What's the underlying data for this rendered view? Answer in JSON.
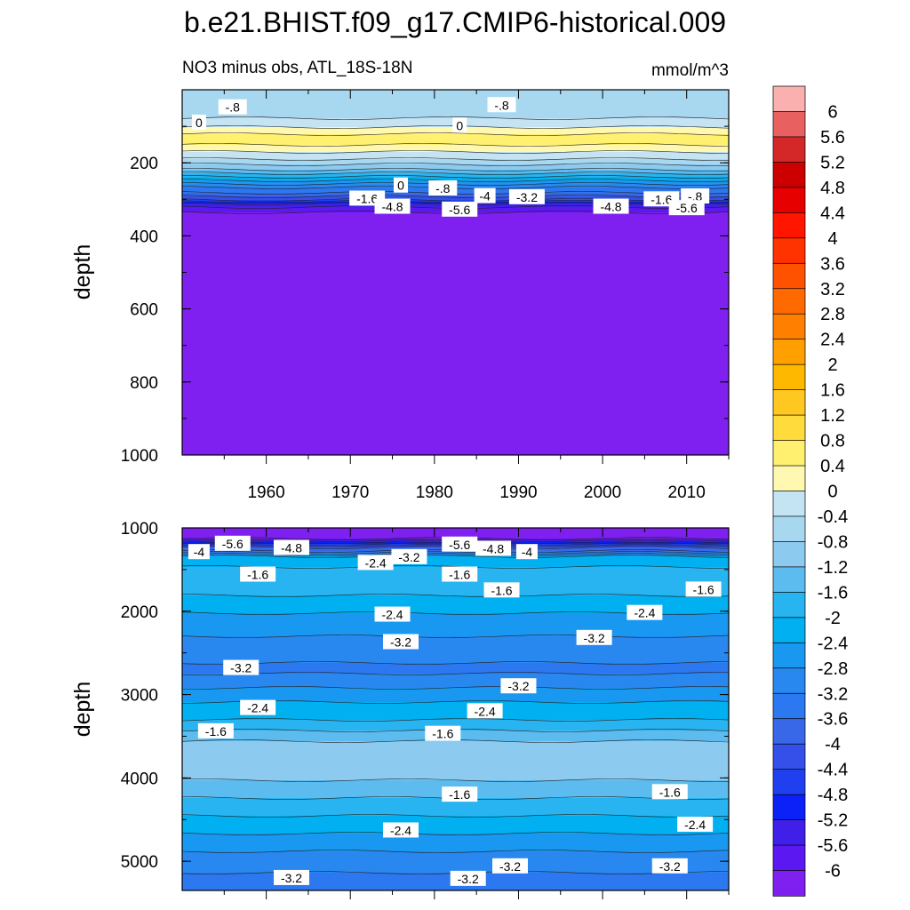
{
  "chart_data": {
    "type": "contour",
    "title": "b.e21.BHIST.f09_g17.CMIP6-historical.009",
    "subtitle_left": "NO3 minus obs, ATL_18S-18N",
    "units": "mmol/m^3",
    "ylabel": "depth",
    "x_range": [
      1950,
      2015
    ],
    "x_ticks": [
      "1960",
      "1970",
      "1980",
      "1990",
      "2000",
      "2010"
    ],
    "upper_panel": {
      "y_range": [
        0,
        1000
      ],
      "y_ticks": [
        "200",
        "400",
        "600",
        "800",
        "1000"
      ],
      "profile": [
        {
          "depth": 0,
          "value": -0.6
        },
        {
          "depth": 40,
          "value": -0.8
        },
        {
          "depth": 80,
          "value": -0.4
        },
        {
          "depth": 120,
          "value": 0.4
        },
        {
          "depth": 140,
          "value": 0.6
        },
        {
          "depth": 160,
          "value": 0.2
        },
        {
          "depth": 190,
          "value": -0.4
        },
        {
          "depth": 230,
          "value": -1.6
        },
        {
          "depth": 270,
          "value": -3.2
        },
        {
          "depth": 300,
          "value": -4.4
        },
        {
          "depth": 320,
          "value": -5.6
        },
        {
          "depth": 340,
          "value": -6.2
        },
        {
          "depth": 1000,
          "value": -6.2
        }
      ],
      "contour_labels": [
        {
          "text": "0",
          "year": 1952,
          "depth": 90
        },
        {
          "text": "-.8",
          "year": 1956,
          "depth": 48
        },
        {
          "text": "0",
          "year": 1983,
          "depth": 98
        },
        {
          "text": "-.8",
          "year": 1988,
          "depth": 42
        },
        {
          "text": "0",
          "year": 1976,
          "depth": 262
        },
        {
          "text": "-1.6",
          "year": 1972,
          "depth": 298
        },
        {
          "text": "-.8",
          "year": 1981,
          "depth": 270
        },
        {
          "text": "-1.6",
          "year": 2007,
          "depth": 300
        },
        {
          "text": "-.8",
          "year": 2011,
          "depth": 292
        },
        {
          "text": "-3.2",
          "year": 1991,
          "depth": 294
        },
        {
          "text": "-4",
          "year": 1986,
          "depth": 291
        },
        {
          "text": "-4.8",
          "year": 1975,
          "depth": 320
        },
        {
          "text": "-5.6",
          "year": 1983,
          "depth": 328
        },
        {
          "text": "-4.8",
          "year": 2001,
          "depth": 320
        },
        {
          "text": "-5.6",
          "year": 2010,
          "depth": 324
        }
      ]
    },
    "lower_panel": {
      "y_range": [
        1000,
        5350
      ],
      "y_ticks": [
        "1000",
        "2000",
        "3000",
        "4000",
        "5000"
      ],
      "profile": [
        {
          "depth": 1000,
          "value": -6.2
        },
        {
          "depth": 1130,
          "value": -6.0
        },
        {
          "depth": 1230,
          "value": -4.2
        },
        {
          "depth": 1350,
          "value": -2.4
        },
        {
          "depth": 1600,
          "value": -1.6
        },
        {
          "depth": 1900,
          "value": -2.2
        },
        {
          "depth": 2300,
          "value": -2.8
        },
        {
          "depth": 2700,
          "value": -3.3
        },
        {
          "depth": 3000,
          "value": -2.6
        },
        {
          "depth": 3300,
          "value": -2.0
        },
        {
          "depth": 3600,
          "value": -1.1
        },
        {
          "depth": 3900,
          "value": -1.0
        },
        {
          "depth": 4200,
          "value": -1.5
        },
        {
          "depth": 4600,
          "value": -2.3
        },
        {
          "depth": 5000,
          "value": -3.0
        },
        {
          "depth": 5350,
          "value": -3.5
        }
      ],
      "contour_labels": [
        {
          "text": "-4",
          "year": 1952,
          "depth": 1290
        },
        {
          "text": "-5.6",
          "year": 1956,
          "depth": 1190
        },
        {
          "text": "-4.8",
          "year": 1963,
          "depth": 1240
        },
        {
          "text": "-2.4",
          "year": 1973,
          "depth": 1420
        },
        {
          "text": "-3.2",
          "year": 1977,
          "depth": 1350
        },
        {
          "text": "-5.6",
          "year": 1983,
          "depth": 1200
        },
        {
          "text": "-4.8",
          "year": 1987,
          "depth": 1250
        },
        {
          "text": "-4",
          "year": 1991,
          "depth": 1290
        },
        {
          "text": "-1.6",
          "year": 1959,
          "depth": 1560
        },
        {
          "text": "-1.6",
          "year": 1983,
          "depth": 1560
        },
        {
          "text": "-1.6",
          "year": 1988,
          "depth": 1750
        },
        {
          "text": "-1.6",
          "year": 2012,
          "depth": 1740
        },
        {
          "text": "-2.4",
          "year": 1975,
          "depth": 2040
        },
        {
          "text": "-2.4",
          "year": 2005,
          "depth": 2020
        },
        {
          "text": "-3.2",
          "year": 1976,
          "depth": 2370
        },
        {
          "text": "-3.2",
          "year": 1999,
          "depth": 2320
        },
        {
          "text": "-3.2",
          "year": 1957,
          "depth": 2680
        },
        {
          "text": "-3.2",
          "year": 1990,
          "depth": 2900
        },
        {
          "text": "-2.4",
          "year": 1959,
          "depth": 3160
        },
        {
          "text": "-2.4",
          "year": 1986,
          "depth": 3200
        },
        {
          "text": "-1.6",
          "year": 1954,
          "depth": 3440
        },
        {
          "text": "-1.6",
          "year": 1981,
          "depth": 3470
        },
        {
          "text": "-1.6",
          "year": 1983,
          "depth": 4200
        },
        {
          "text": "-1.6",
          "year": 2008,
          "depth": 4170
        },
        {
          "text": "-2.4",
          "year": 1976,
          "depth": 4630
        },
        {
          "text": "-2.4",
          "year": 2011,
          "depth": 4560
        },
        {
          "text": "-3.2",
          "year": 1963,
          "depth": 5200
        },
        {
          "text": "-3.2",
          "year": 1984,
          "depth": 5210
        },
        {
          "text": "-3.2",
          "year": 1989,
          "depth": 5060
        },
        {
          "text": "-3.2",
          "year": 2008,
          "depth": 5060
        }
      ]
    },
    "colorbar": {
      "labels": [
        "6",
        "5.6",
        "5.2",
        "4.8",
        "4.4",
        "4",
        "3.6",
        "3.2",
        "2.8",
        "2.4",
        "2",
        "1.6",
        "1.2",
        "0.8",
        "0.4",
        "0",
        "-0.4",
        "-0.8",
        "-1.2",
        "-1.6",
        "-2",
        "-2.4",
        "-2.8",
        "-3.2",
        "-3.6",
        "-4",
        "-4.4",
        "-4.8",
        "-5.2",
        "-5.6",
        "-6"
      ],
      "colors": [
        "#fbb0b0",
        "#e86060",
        "#d42828",
        "#cc0000",
        "#e60000",
        "#ff1500",
        "#ff3300",
        "#ff5200",
        "#ff6a00",
        "#ff8000",
        "#ffa000",
        "#ffb800",
        "#ffc820",
        "#ffdc3c",
        "#fff070",
        "#fff8b0",
        "#c4e4f4",
        "#a8d8f0",
        "#8ccaf0",
        "#5cbcf0",
        "#28b4f0",
        "#00b0f0",
        "#1898f0",
        "#2888f0",
        "#2c78f0",
        "#3868e8",
        "#3450e8",
        "#2040f0",
        "#0c20f8",
        "#4020e8",
        "#5c18f0",
        "#8020f0"
      ]
    }
  }
}
